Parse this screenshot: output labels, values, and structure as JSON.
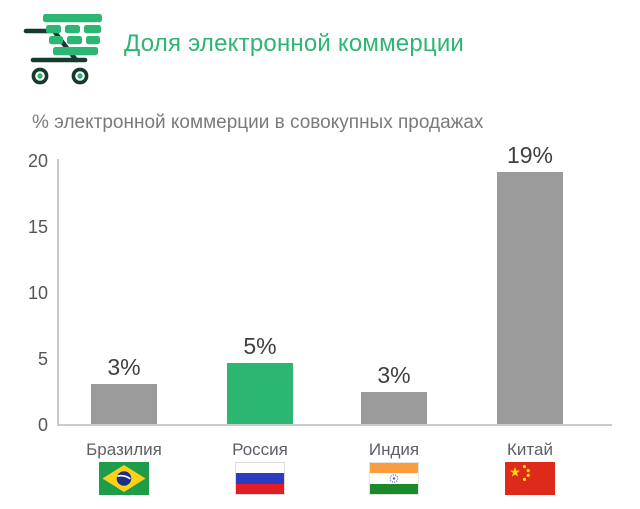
{
  "header": {
    "title": "Доля электронной коммерции",
    "icon": "shopping-cart-icon"
  },
  "subtitle": "% электронной коммерции в совокупных продажах",
  "chart_data": {
    "type": "bar",
    "title": "Доля электронной коммерции",
    "axis_note": "% электронной коммерции в совокупных продажах",
    "categories": [
      "Бразилия",
      "Россия",
      "Индия",
      "Китай"
    ],
    "values": [
      3,
      5,
      3,
      19
    ],
    "value_labels": [
      "3%",
      "5%",
      "3%",
      "19%"
    ],
    "bar_heights_pct": [
      3.0,
      4.6,
      2.4,
      19.1
    ],
    "bar_colors": [
      "#9b9b9b",
      "#2bb671",
      "#9b9b9b",
      "#9b9b9b"
    ],
    "flags": [
      "brazil",
      "russia",
      "india",
      "china"
    ],
    "xlabel": "",
    "ylabel": "",
    "yticks": [
      0,
      5,
      10,
      15,
      20
    ],
    "ylim": [
      0,
      20
    ],
    "grid": false,
    "legend": false,
    "highlight_category": "Россия"
  },
  "colors": {
    "accent_green": "#2fb573",
    "bar_gray": "#9b9b9b",
    "axis_line": "#cacaca",
    "value_text": "#3f3f3f",
    "tick_text": "#565656",
    "subtitle_text": "#7a7a7a"
  }
}
